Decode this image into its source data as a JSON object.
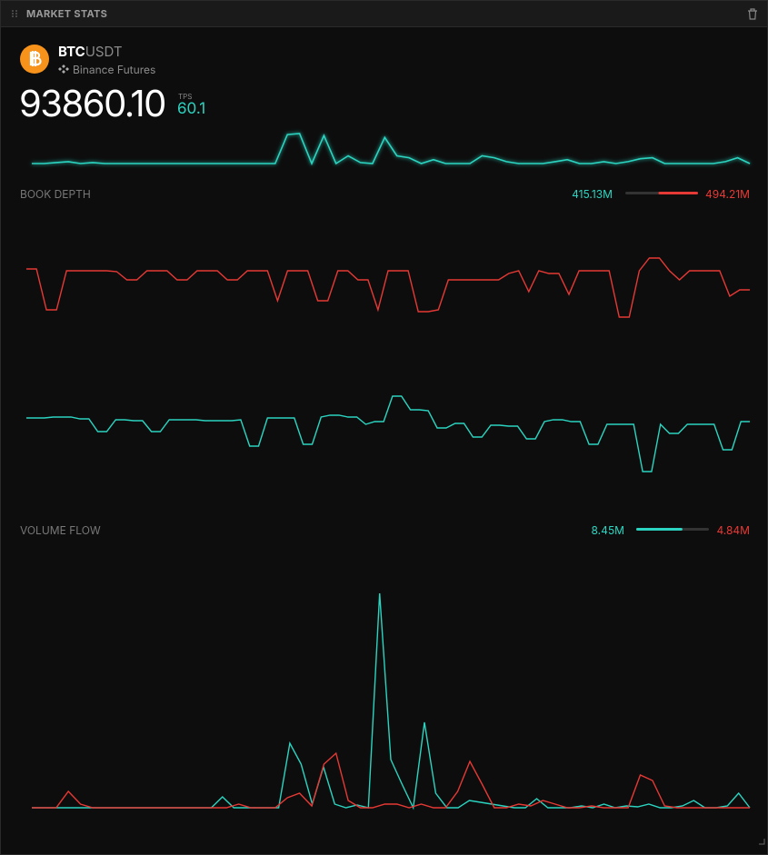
{
  "panel": {
    "title": "MARKET STATS"
  },
  "ticker": {
    "base": "BTC",
    "quote": "USDT",
    "exchange": "Binance Futures"
  },
  "price": "93860.10",
  "tps": {
    "label": "TPS",
    "value": "60.1"
  },
  "chart_data": [
    {
      "type": "line",
      "series": [
        {
          "color": "#2bd4c0",
          "values": [
            2,
            2,
            3,
            4,
            2,
            3,
            2,
            2,
            2,
            2,
            2,
            2,
            2,
            2,
            2,
            2,
            2,
            2,
            2,
            2,
            2,
            32,
            33,
            2,
            31,
            2,
            10,
            3,
            2,
            29,
            10,
            8,
            2,
            6,
            2,
            2,
            2,
            10,
            8,
            4,
            2,
            2,
            2,
            4,
            6,
            2,
            2,
            4,
            2,
            4,
            7,
            8,
            2,
            2,
            2,
            2,
            2,
            4,
            8,
            2
          ]
        }
      ]
    },
    {
      "type": "line",
      "title": "BOOK DEPTH",
      "bid": {
        "value": 415.13,
        "label": "415.13M"
      },
      "ask": {
        "value": 494.21,
        "label": "494.21M"
      },
      "series": [
        {
          "color": "#e53935",
          "values": [
            55,
            55,
            10,
            10,
            53,
            53,
            53,
            53,
            53,
            52,
            43,
            43,
            53,
            53,
            53,
            43,
            43,
            53,
            53,
            53,
            43,
            43,
            53,
            53,
            53,
            20,
            53,
            53,
            53,
            20,
            20,
            53,
            53,
            43,
            43,
            10,
            53,
            53,
            53,
            8,
            8,
            10,
            43,
            43,
            43,
            43,
            43,
            43,
            50,
            53,
            30,
            53,
            50,
            50,
            27,
            53,
            53,
            53,
            53,
            2,
            2,
            53,
            67,
            67,
            53,
            43,
            53,
            53,
            53,
            53,
            25,
            32,
            32
          ]
        },
        {
          "color": "#2bd4c0",
          "values": [
            61,
            61,
            61,
            62,
            62,
            62,
            60,
            60,
            46,
            46,
            59,
            59,
            58,
            58,
            46,
            46,
            59,
            59,
            59,
            59,
            58,
            58,
            58,
            58,
            59,
            30,
            30,
            61,
            61,
            61,
            61,
            32,
            32,
            62,
            64,
            64,
            62,
            62,
            54,
            57,
            57,
            85,
            85,
            70,
            70,
            69,
            50,
            50,
            55,
            55,
            40,
            40,
            53,
            53,
            52,
            52,
            38,
            38,
            57,
            59,
            59,
            57,
            57,
            32,
            32,
            54,
            54,
            54,
            54,
            2,
            2,
            54,
            44,
            44,
            54,
            54,
            54,
            54,
            26,
            26,
            57,
            57
          ]
        }
      ]
    },
    {
      "type": "line",
      "title": "VOLUME FLOW",
      "buy": {
        "value": 8.45,
        "label": "8.45M"
      },
      "sell": {
        "value": 4.84,
        "label": "4.84M"
      },
      "series": [
        {
          "color": "#2bd4c0",
          "values": [
            2,
            2,
            2,
            2,
            2,
            2,
            2,
            2,
            2,
            2,
            2,
            2,
            2,
            2,
            2,
            2,
            2,
            14,
            2,
            2,
            2,
            2,
            2,
            73,
            50,
            6,
            47,
            6,
            2,
            5,
            2,
            238,
            55,
            28,
            2,
            96,
            18,
            2,
            2,
            10,
            8,
            6,
            4,
            2,
            2,
            12,
            2,
            2,
            2,
            4,
            2,
            6,
            2,
            4,
            3,
            6,
            2,
            2,
            4,
            10,
            2,
            2,
            4,
            18,
            2
          ]
        },
        {
          "color": "#e53935",
          "values": [
            2,
            2,
            2,
            20,
            6,
            2,
            2,
            2,
            2,
            2,
            2,
            2,
            2,
            2,
            2,
            2,
            2,
            6,
            2,
            2,
            2,
            13,
            18,
            4,
            50,
            62,
            10,
            2,
            2,
            6,
            6,
            2,
            6,
            2,
            2,
            20,
            53,
            28,
            2,
            2,
            6,
            4,
            10,
            6,
            2,
            2,
            4,
            2,
            2,
            2,
            38,
            32,
            4,
            2,
            2,
            2,
            2,
            2,
            2,
            2
          ]
        }
      ]
    }
  ]
}
